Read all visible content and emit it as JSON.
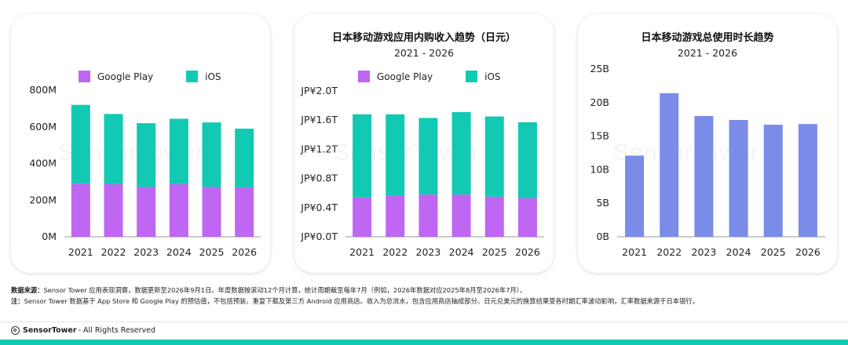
{
  "colors": {
    "google_play": "#bf66f2",
    "ios": "#12c9b3",
    "usage": "#7a8ce8",
    "axis": "#999999",
    "brand": "#12c9b3"
  },
  "watermark": "SensorTower",
  "chart_data": [
    {
      "type": "bar",
      "stacked": true,
      "title": "",
      "subtitle": "",
      "categories": [
        "2021",
        "2022",
        "2023",
        "2024",
        "2025",
        "2026"
      ],
      "series": [
        {
          "name": "Google Play",
          "values": [
            290,
            288,
            272,
            288,
            272,
            270
          ]
        },
        {
          "name": "iOS",
          "values": [
            430,
            382,
            348,
            356,
            352,
            320
          ]
        }
      ],
      "yticks": [
        "0M",
        "200M",
        "400M",
        "600M",
        "800M"
      ],
      "ylim": [
        0,
        800
      ],
      "legend": "top",
      "grid": false
    },
    {
      "type": "bar",
      "stacked": true,
      "title": "日本移动游戏应用内购收入趋势（日元）",
      "subtitle": "2021 - 2026",
      "categories": [
        "2021",
        "2022",
        "2023",
        "2024",
        "2025",
        "2026"
      ],
      "series": [
        {
          "name": "Google Play",
          "values": [
            0.54,
            0.56,
            0.58,
            0.58,
            0.55,
            0.53
          ]
        },
        {
          "name": "iOS",
          "values": [
            1.14,
            1.12,
            1.05,
            1.13,
            1.1,
            1.04
          ]
        }
      ],
      "yticks": [
        "JP¥0.0T",
        "JP¥0.4T",
        "JP¥0.8T",
        "JP¥1.2T",
        "JP¥1.6T",
        "JP¥2.0T"
      ],
      "ylim": [
        0,
        2.0
      ],
      "legend": "top",
      "grid": false
    },
    {
      "type": "bar",
      "title": "日本移动游戏总使用时长趋势",
      "subtitle": "2021 - 2026",
      "categories": [
        "2021",
        "2022",
        "2023",
        "2024",
        "2025",
        "2026"
      ],
      "values": [
        12.1,
        21.4,
        18.0,
        17.4,
        16.7,
        16.8
      ],
      "yticks": [
        "0B",
        "5B",
        "10B",
        "15B",
        "20B",
        "25B"
      ],
      "ylim": [
        0,
        25
      ],
      "grid": false
    }
  ],
  "footnotes": {
    "source_label": "数据来源：",
    "source_text": "Sensor Tower 应用表现洞察，数据更新至2026年9月1日。年度数据按滚动12个月计算，统计周期截至每年7月（例如，2026年数据对应2025年8月至2026年7月）。",
    "note_label": "注：",
    "note_text": "Sensor Tower 数据基于 App Store 和 Google Play 的预估值，不包括预装、重复下载及第三方 Android 应用商店。收入为总流水，包含应用商店抽成部分。日元兑美元的换算结果受各时期汇率波动影响，汇率数据来源于日本银行。"
  },
  "footer": {
    "brand": "SensorTower",
    "rights": "- All Rights Reserved"
  }
}
